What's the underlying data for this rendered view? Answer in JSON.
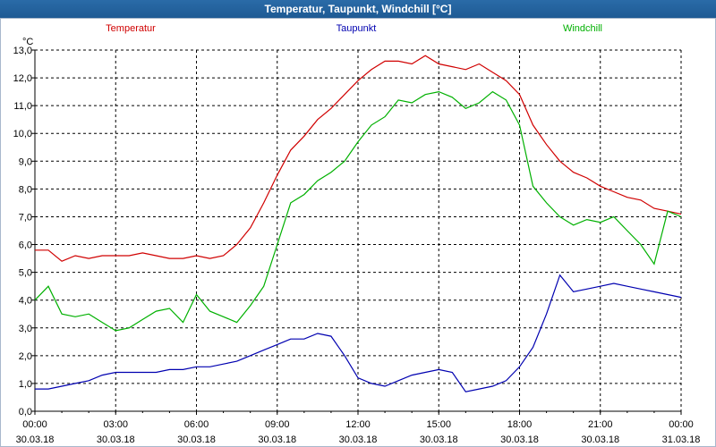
{
  "window": {
    "title": "Temperatur, Taupunkt, Windchill [°C]"
  },
  "chart_data": {
    "type": "line",
    "title": "Temperatur, Taupunkt, Windchill [°C]",
    "ylabel": "°C",
    "xlabel": "",
    "ylim": [
      0,
      13
    ],
    "xlim": [
      0,
      24
    ],
    "grid": true,
    "legend_position": "top",
    "yticks": [
      "0,0",
      "1,0",
      "2,0",
      "3,0",
      "4,0",
      "5,0",
      "6,0",
      "7,0",
      "8,0",
      "9,0",
      "10,0",
      "11,0",
      "12,0",
      "13,0"
    ],
    "xticks": [
      {
        "time": "00:00",
        "date": "30.03.18"
      },
      {
        "time": "03:00",
        "date": "30.03.18"
      },
      {
        "time": "06:00",
        "date": "30.03.18"
      },
      {
        "time": "09:00",
        "date": "30.03.18"
      },
      {
        "time": "12:00",
        "date": "30.03.18"
      },
      {
        "time": "15:00",
        "date": "30.03.18"
      },
      {
        "time": "18:00",
        "date": "30.03.18"
      },
      {
        "time": "21:00",
        "date": "30.03.18"
      },
      {
        "time": "00:00",
        "date": "31.03.18"
      }
    ],
    "series": [
      {
        "name": "Temperatur",
        "color": "#d00000",
        "x": [
          0,
          0.5,
          1,
          1.5,
          2,
          2.5,
          3,
          3.5,
          4,
          4.5,
          5,
          5.5,
          6,
          6.5,
          7,
          7.5,
          8,
          8.5,
          9,
          9.5,
          10,
          10.5,
          11,
          11.5,
          12,
          12.5,
          13,
          13.5,
          14,
          14.5,
          15,
          15.5,
          16,
          16.5,
          17,
          17.5,
          18,
          18.5,
          19,
          19.5,
          20,
          20.5,
          21,
          21.5,
          22,
          22.5,
          23,
          23.5,
          24
        ],
        "values": [
          5.8,
          5.8,
          5.4,
          5.6,
          5.5,
          5.6,
          5.6,
          5.6,
          5.7,
          5.6,
          5.5,
          5.5,
          5.6,
          5.5,
          5.6,
          6.0,
          6.6,
          7.5,
          8.5,
          9.4,
          9.9,
          10.5,
          10.9,
          11.4,
          11.9,
          12.3,
          12.6,
          12.6,
          12.5,
          12.8,
          12.5,
          12.4,
          12.3,
          12.5,
          12.2,
          11.9,
          11.4,
          10.3,
          9.6,
          9.0,
          8.6,
          8.4,
          8.1,
          7.9,
          7.7,
          7.6,
          7.3,
          7.2,
          7.1
        ]
      },
      {
        "name": "Taupunkt",
        "color": "#0000b0",
        "x": [
          0,
          0.5,
          1,
          1.5,
          2,
          2.5,
          3,
          3.5,
          4,
          4.5,
          5,
          5.5,
          6,
          6.5,
          7,
          7.5,
          8,
          8.5,
          9,
          9.5,
          10,
          10.5,
          11,
          11.5,
          12,
          12.5,
          13,
          13.5,
          14,
          14.5,
          15,
          15.5,
          16,
          16.5,
          17,
          17.5,
          18,
          18.5,
          19,
          19.5,
          20,
          20.5,
          21,
          21.5,
          22,
          22.5,
          23,
          23.5,
          24
        ],
        "values": [
          0.8,
          0.8,
          0.9,
          1.0,
          1.1,
          1.3,
          1.4,
          1.4,
          1.4,
          1.4,
          1.5,
          1.5,
          1.6,
          1.6,
          1.7,
          1.8,
          2.0,
          2.2,
          2.4,
          2.6,
          2.6,
          2.8,
          2.7,
          2.0,
          1.2,
          1.0,
          0.9,
          1.1,
          1.3,
          1.4,
          1.5,
          1.4,
          0.7,
          0.8,
          0.9,
          1.1,
          1.6,
          2.3,
          3.5,
          4.9,
          4.3,
          4.4,
          4.5,
          4.6,
          4.5,
          4.4,
          4.3,
          4.2,
          4.1
        ]
      },
      {
        "name": "Windchill",
        "color": "#00b000",
        "x": [
          0,
          0.5,
          1,
          1.5,
          2,
          2.5,
          3,
          3.5,
          4,
          4.5,
          5,
          5.5,
          6,
          6.5,
          7,
          7.5,
          8,
          8.5,
          9,
          9.5,
          10,
          10.5,
          11,
          11.5,
          12,
          12.5,
          13,
          13.5,
          14,
          14.5,
          15,
          15.5,
          16,
          16.5,
          17,
          17.5,
          18,
          18.5,
          19,
          19.5,
          20,
          20.5,
          21,
          21.5,
          22,
          22.5,
          23,
          23.5,
          24
        ],
        "values": [
          4.0,
          4.5,
          3.5,
          3.4,
          3.5,
          3.2,
          2.9,
          3.0,
          3.3,
          3.6,
          3.7,
          3.2,
          4.2,
          3.6,
          3.4,
          3.2,
          3.8,
          4.5,
          6.0,
          7.5,
          7.8,
          8.3,
          8.6,
          9.0,
          9.7,
          10.3,
          10.6,
          11.2,
          11.1,
          11.4,
          11.5,
          11.3,
          10.9,
          11.1,
          11.5,
          11.2,
          10.3,
          8.1,
          7.5,
          7.0,
          6.7,
          6.9,
          6.8,
          7.0,
          6.5,
          6.0,
          5.3,
          7.2,
          7.0
        ]
      }
    ]
  }
}
